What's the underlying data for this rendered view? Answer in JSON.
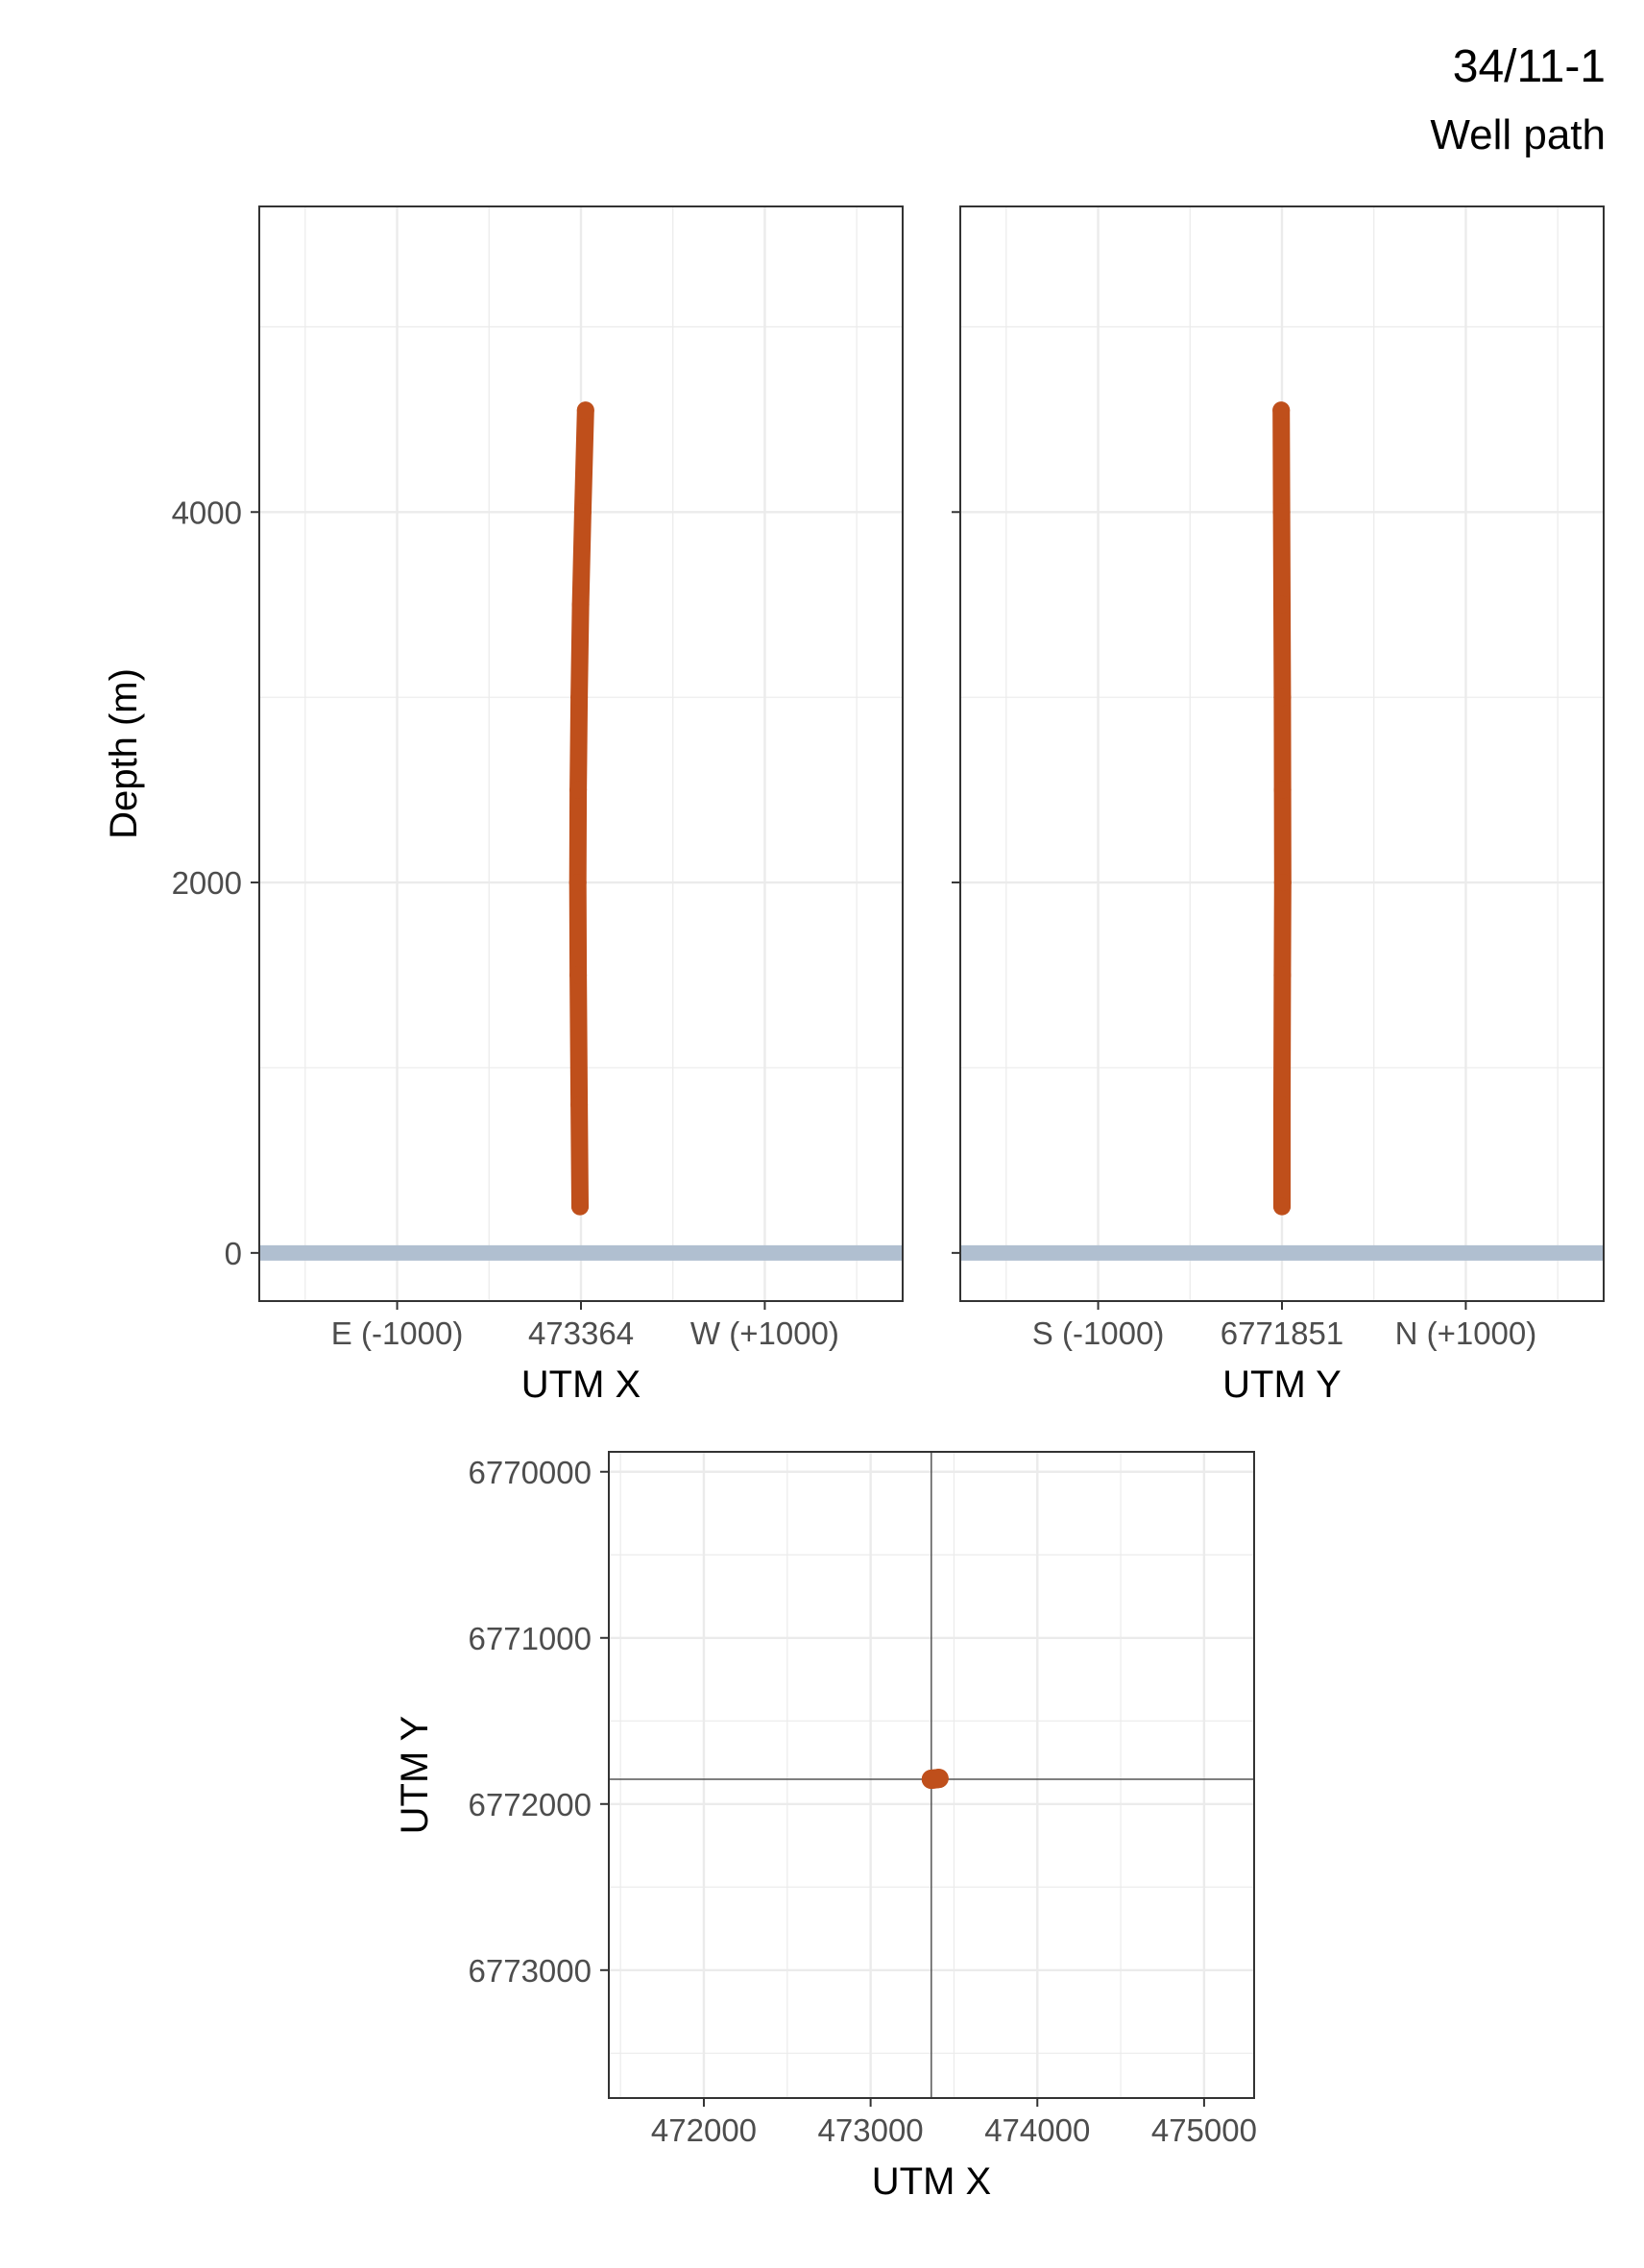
{
  "header": {
    "title": "34/11-1",
    "subtitle": "Well path"
  },
  "colors": {
    "well_path": "#BF4F1B",
    "sea_surface": "#B0BFD0",
    "grid": "#EBEBEB",
    "panel_border": "#333333",
    "crosshair": "#555555"
  },
  "chart_data": [
    {
      "type": "line",
      "panel": "depth-vs-utm-x",
      "xlabel": "UTM X",
      "ylabel": "Depth (m)",
      "x_ticks": [
        {
          "value": -1000,
          "label": "E (-1000)"
        },
        {
          "value": 0,
          "label": "473364"
        },
        {
          "value": 1000,
          "label": "W (+1000)"
        }
      ],
      "y_ticks": [
        {
          "value": 0,
          "label": "0"
        },
        {
          "value": 2000,
          "label": "2000"
        },
        {
          "value": 4000,
          "label": "4000"
        }
      ],
      "xlim": [
        -1750,
        1750
      ],
      "ylim": [
        5650,
        -260
      ],
      "grid": true,
      "sea_level_depth": 0,
      "series": [
        {
          "x": [
            -5,
            -10,
            -15,
            -17,
            -15,
            -10,
            -2,
            10,
            25
          ],
          "y": [
            250,
            800,
            1500,
            2000,
            2500,
            3000,
            3500,
            4000,
            4550
          ]
        }
      ]
    },
    {
      "type": "line",
      "panel": "depth-vs-utm-y",
      "xlabel": "UTM Y",
      "ylabel": "",
      "x_ticks": [
        {
          "value": -1000,
          "label": "S (-1000)"
        },
        {
          "value": 0,
          "label": "6771851"
        },
        {
          "value": 1000,
          "label": "N (+1000)"
        }
      ],
      "y_ticks": [
        {
          "value": 0,
          "label": ""
        },
        {
          "value": 2000,
          "label": ""
        },
        {
          "value": 4000,
          "label": ""
        }
      ],
      "xlim": [
        -1750,
        1750
      ],
      "ylim": [
        5650,
        -260
      ],
      "grid": true,
      "sea_level_depth": 0,
      "series": [
        {
          "x": [
            0,
            0,
            2,
            4,
            3,
            2,
            0,
            -2,
            -4
          ],
          "y": [
            250,
            800,
            1500,
            2000,
            2500,
            3000,
            3500,
            4000,
            4550
          ]
        }
      ]
    },
    {
      "type": "scatter",
      "panel": "map-utm",
      "xlabel": "UTM X",
      "ylabel": "UTM Y",
      "x_ticks": [
        {
          "value": 472000,
          "label": "472000"
        },
        {
          "value": 473000,
          "label": "473000"
        },
        {
          "value": 474000,
          "label": "474000"
        },
        {
          "value": 475000,
          "label": "475000"
        }
      ],
      "y_ticks": [
        {
          "value": 6770000,
          "label": "6770000"
        },
        {
          "value": 6771000,
          "label": "6771000"
        },
        {
          "value": 6772000,
          "label": "6772000"
        },
        {
          "value": 6773000,
          "label": "6773000"
        }
      ],
      "xlim": [
        471430,
        475300
      ],
      "ylim": [
        6769880,
        6773770
      ],
      "grid": true,
      "crosshair": {
        "x": 473364,
        "y": 6771851
      },
      "series": [
        {
          "x": [
            473364,
            473380,
            473400,
            473410
          ],
          "y": [
            6771851,
            6771849,
            6771847,
            6771846
          ]
        }
      ]
    }
  ]
}
